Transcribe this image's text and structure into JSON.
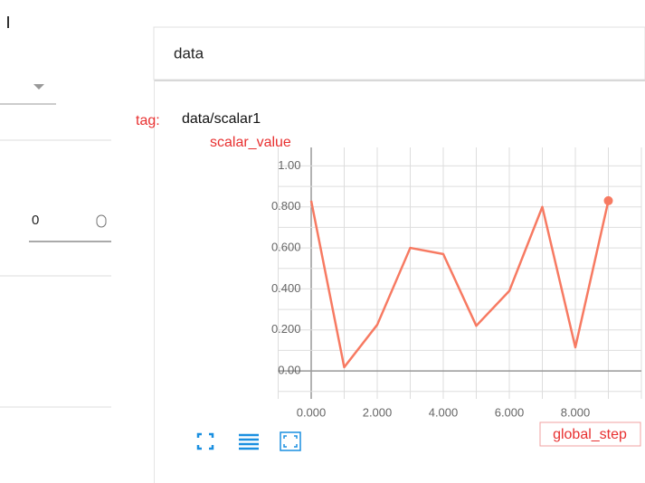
{
  "sidebar": {
    "input_value": "0"
  },
  "card": {
    "title": "data",
    "tag_label": "tag:",
    "tag": "data/scalar1"
  },
  "chart_data": {
    "type": "line",
    "ylabel": "scalar_value",
    "xlabel": "global_step",
    "x": [
      0,
      1,
      2,
      3,
      4,
      5,
      6,
      7,
      8,
      9
    ],
    "series": [
      {
        "color": "#f77a62",
        "values": [
          0.83,
          0.018,
          0.225,
          0.6,
          0.57,
          0.22,
          0.39,
          0.8,
          0.115,
          0.83
        ]
      }
    ],
    "xlim": [
      -1,
      10
    ],
    "ylim": [
      -0.11,
      1.09
    ],
    "xticks": [
      {
        "value": 0,
        "label": "0.000"
      },
      {
        "value": 2,
        "label": "2.000"
      },
      {
        "value": 4,
        "label": "4.000"
      },
      {
        "value": 6,
        "label": "6.000"
      },
      {
        "value": 8,
        "label": "8.000"
      }
    ],
    "yticks": [
      {
        "value": 0,
        "label": "0.00"
      },
      {
        "value": 0.2,
        "label": "0.200"
      },
      {
        "value": 0.4,
        "label": "0.400"
      },
      {
        "value": 0.6,
        "label": "0.600"
      },
      {
        "value": 0.8,
        "label": "0.800"
      },
      {
        "value": 1,
        "label": "1.00"
      }
    ],
    "xgrid": [
      -1,
      0,
      1,
      2,
      3,
      4,
      5,
      6,
      7,
      8,
      9,
      10
    ],
    "ygrid": [
      -0.1,
      0,
      0.1,
      0.2,
      0.3,
      0.4,
      0.5,
      0.6,
      0.7,
      0.8,
      0.9,
      1
    ],
    "grid": true
  }
}
